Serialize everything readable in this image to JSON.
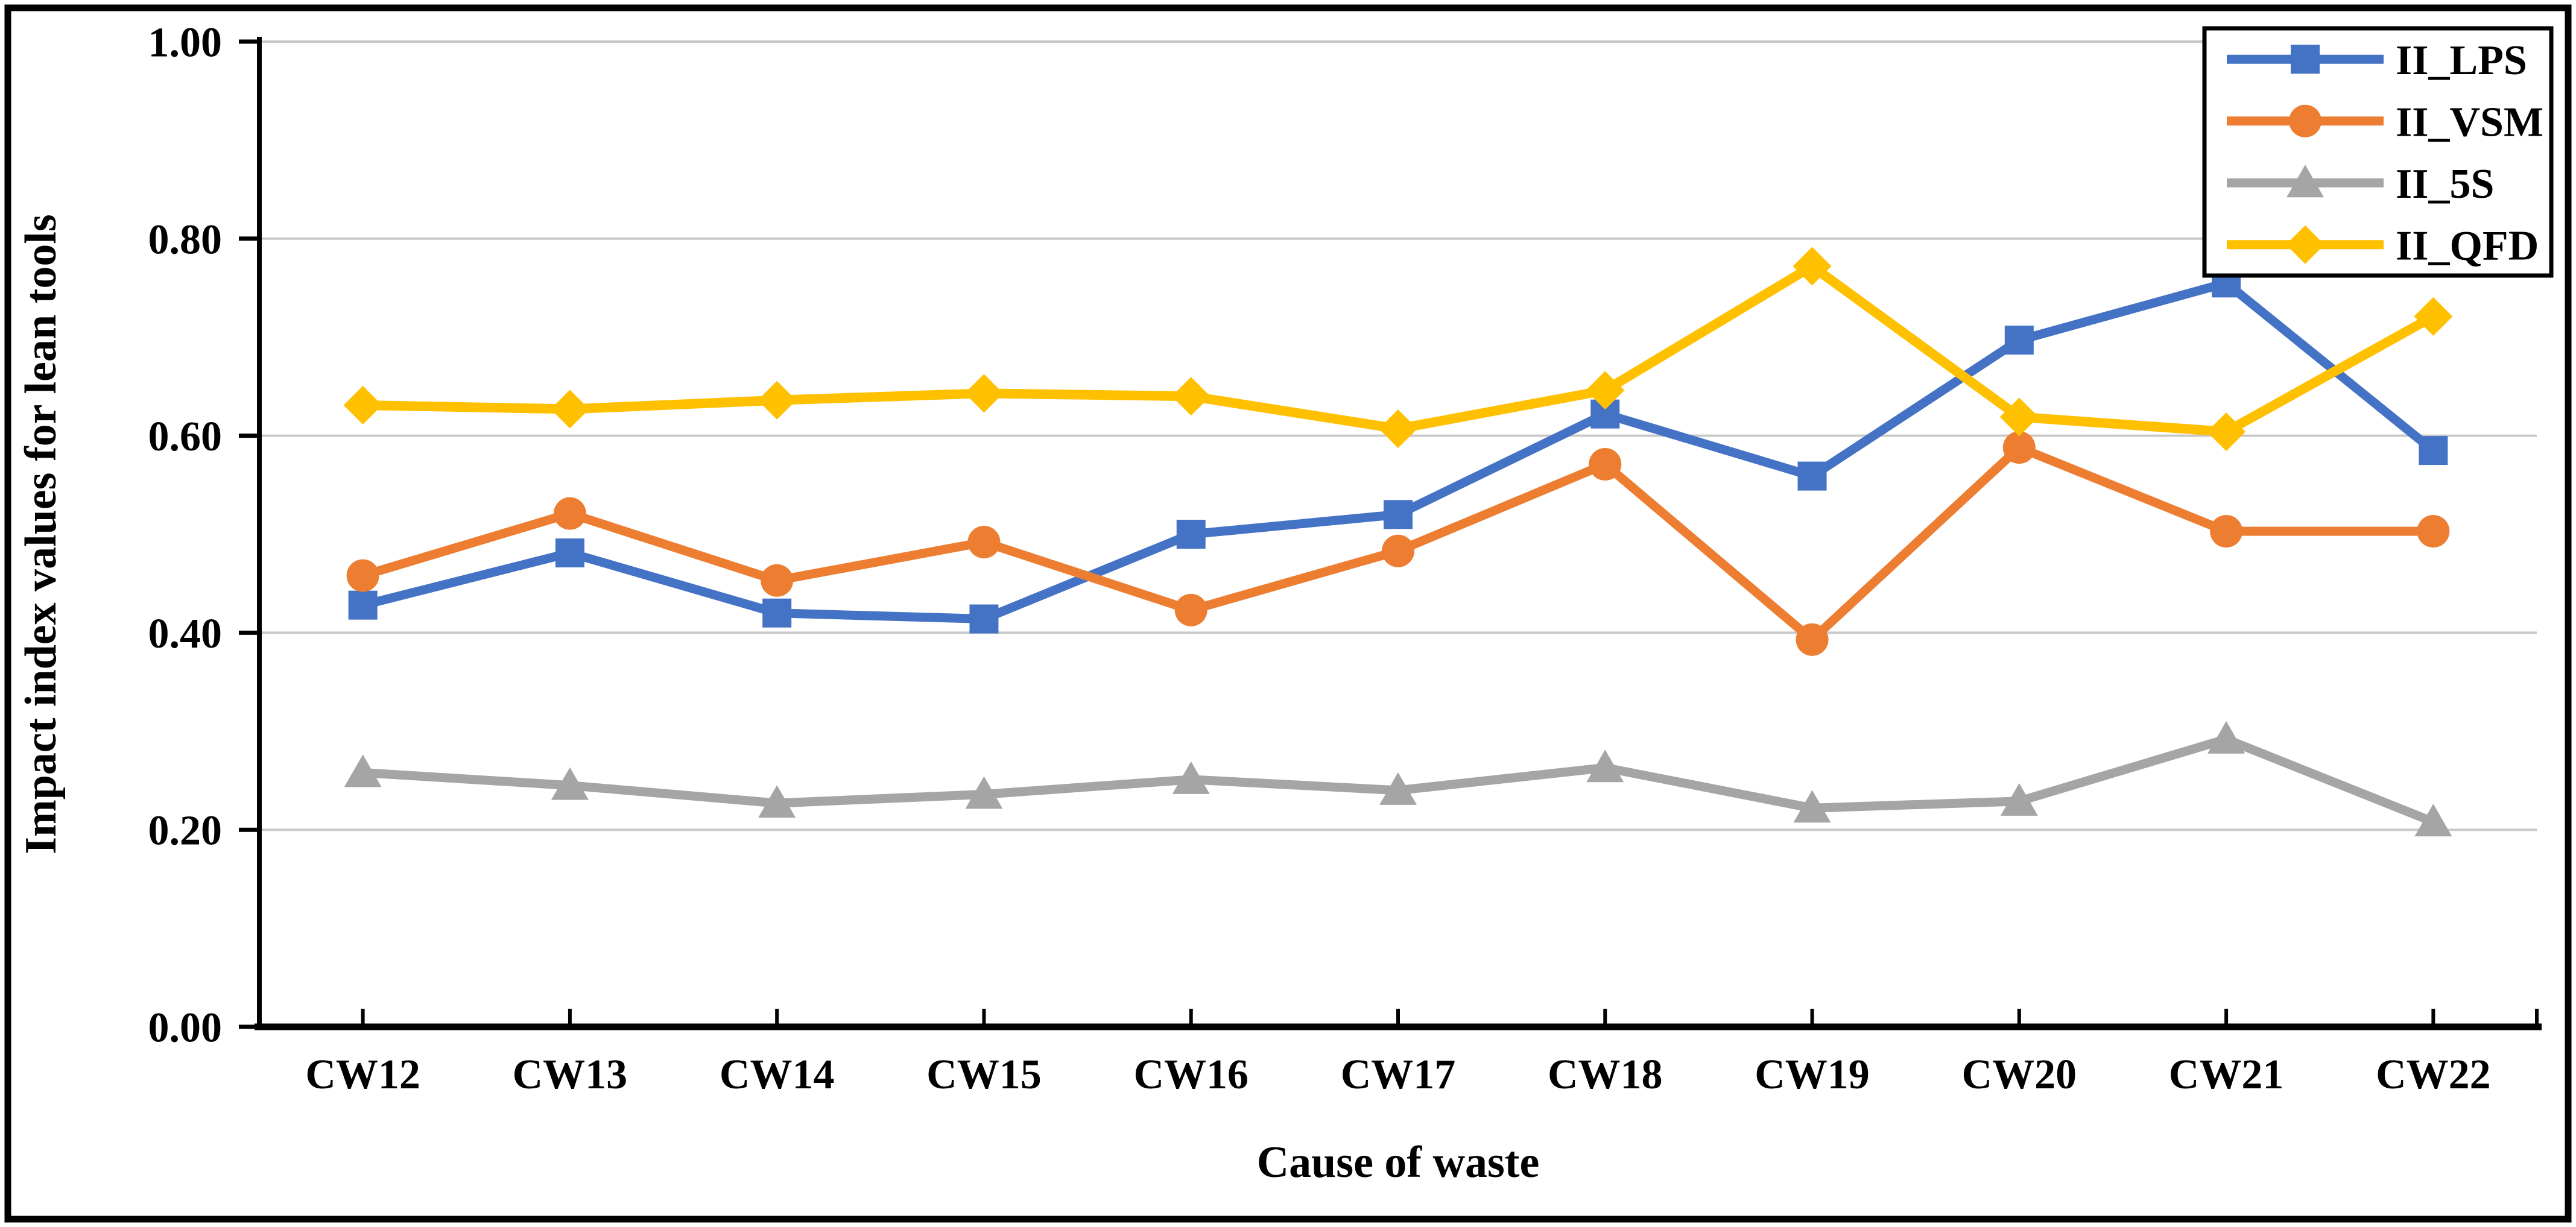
{
  "chart_data": {
    "type": "line",
    "title": "",
    "xlabel": "Cause of waste",
    "ylabel": "Impact index values for lean tools",
    "categories": [
      "CW12",
      "CW13",
      "CW14",
      "CW15",
      "CW16",
      "CW17",
      "CW18",
      "CW19",
      "CW20",
      "CW21",
      "CW22"
    ],
    "ylim": [
      0.0,
      1.0
    ],
    "yticks": [
      0.0,
      0.2,
      0.4,
      0.6,
      0.8,
      1.0
    ],
    "ytick_labels": [
      "0.00",
      "0.20",
      "0.40",
      "0.60",
      "0.80",
      "1.00"
    ],
    "grid": true,
    "legend_position": "top-right",
    "background_color": "#FFFFFF",
    "border_color": "#000000",
    "axis_color": "#000000",
    "gridline_color": "#C9C9C9",
    "series": [
      {
        "name": "II_LPS",
        "color": "#4472C4",
        "marker": "square",
        "values": [
          0.428,
          0.481,
          0.42,
          0.414,
          0.5,
          0.52,
          0.622,
          0.559,
          0.697,
          0.755,
          0.585
        ]
      },
      {
        "name": "II_VSM",
        "color": "#ED7D31",
        "marker": "circle",
        "values": [
          0.458,
          0.521,
          0.453,
          0.492,
          0.423,
          0.483,
          0.571,
          0.393,
          0.588,
          0.503,
          0.503
        ]
      },
      {
        "name": "II_5S",
        "color": "#A5A5A5",
        "marker": "triangle",
        "values": [
          0.258,
          0.245,
          0.227,
          0.236,
          0.251,
          0.24,
          0.263,
          0.222,
          0.229,
          0.292,
          0.208
        ]
      },
      {
        "name": "II_QFD",
        "color": "#FFC000",
        "marker": "diamond",
        "values": [
          0.631,
          0.627,
          0.636,
          0.643,
          0.64,
          0.607,
          0.646,
          0.772,
          0.619,
          0.604,
          0.721
        ]
      }
    ]
  }
}
